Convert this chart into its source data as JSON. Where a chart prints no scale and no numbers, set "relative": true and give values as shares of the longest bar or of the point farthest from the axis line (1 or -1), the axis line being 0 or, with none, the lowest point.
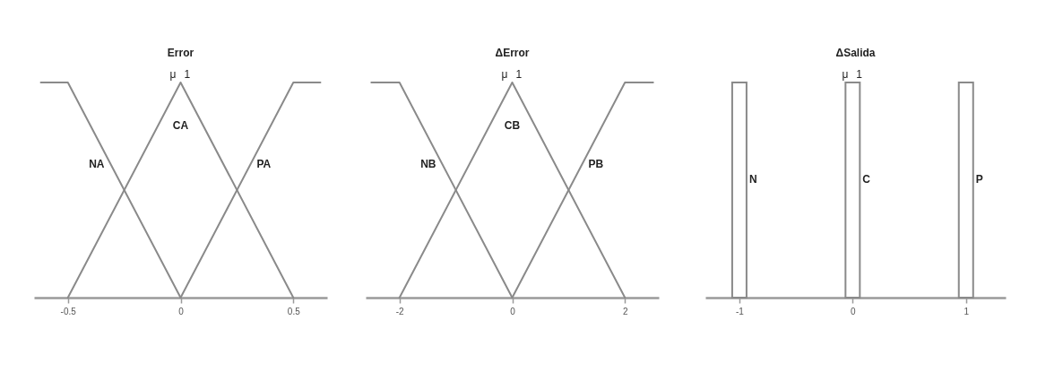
{
  "chart_data": [
    {
      "type": "line",
      "title": "Error",
      "ylabel": "μ",
      "relative": true,
      "xlim": [
        -0.65,
        0.65
      ],
      "xticks": [
        -0.5,
        0,
        0.5
      ],
      "annotations": [
        "1"
      ],
      "series": [
        {
          "name": "NA",
          "color": "#8a8a8a",
          "x": [
            -0.62,
            -0.5,
            0
          ],
          "values": [
            1,
            1,
            0
          ]
        },
        {
          "name": "CA",
          "color": "#8a8a8a",
          "x": [
            -0.5,
            0,
            0.5
          ],
          "values": [
            0,
            1,
            0
          ]
        },
        {
          "name": "PA",
          "color": "#8a8a8a",
          "x": [
            0,
            0.5,
            0.62
          ],
          "values": [
            0,
            1,
            1
          ]
        }
      ]
    },
    {
      "type": "line",
      "title": "ΔError",
      "ylabel": "μ",
      "relative": true,
      "xlim": [
        -2.6,
        2.6
      ],
      "xticks": [
        -2,
        0,
        2
      ],
      "annotations": [
        "1"
      ],
      "series": [
        {
          "name": "NB",
          "color": "#8a8a8a",
          "x": [
            -2.5,
            -2,
            0
          ],
          "values": [
            1,
            1,
            0
          ]
        },
        {
          "name": "CB",
          "color": "#8a8a8a",
          "x": [
            -2,
            0,
            2
          ],
          "values": [
            0,
            1,
            0
          ]
        },
        {
          "name": "PB",
          "color": "#8a8a8a",
          "x": [
            0,
            2,
            2.5
          ],
          "values": [
            0,
            1,
            1
          ]
        }
      ]
    },
    {
      "type": "bar",
      "title": "ΔSalida",
      "ylabel": "μ",
      "relative": true,
      "xlim": [
        -1.3,
        1.35
      ],
      "xticks": [
        -1,
        0,
        1
      ],
      "annotations": [
        "1"
      ],
      "series": [
        {
          "name": "N",
          "color": "#8a8a8a",
          "x": [
            -1
          ],
          "values": [
            1
          ]
        },
        {
          "name": "C",
          "color": "#8a8a8a",
          "x": [
            0
          ],
          "values": [
            1
          ]
        },
        {
          "name": "P",
          "color": "#8a8a8a",
          "x": [
            1
          ],
          "values": [
            1
          ]
        }
      ]
    }
  ]
}
